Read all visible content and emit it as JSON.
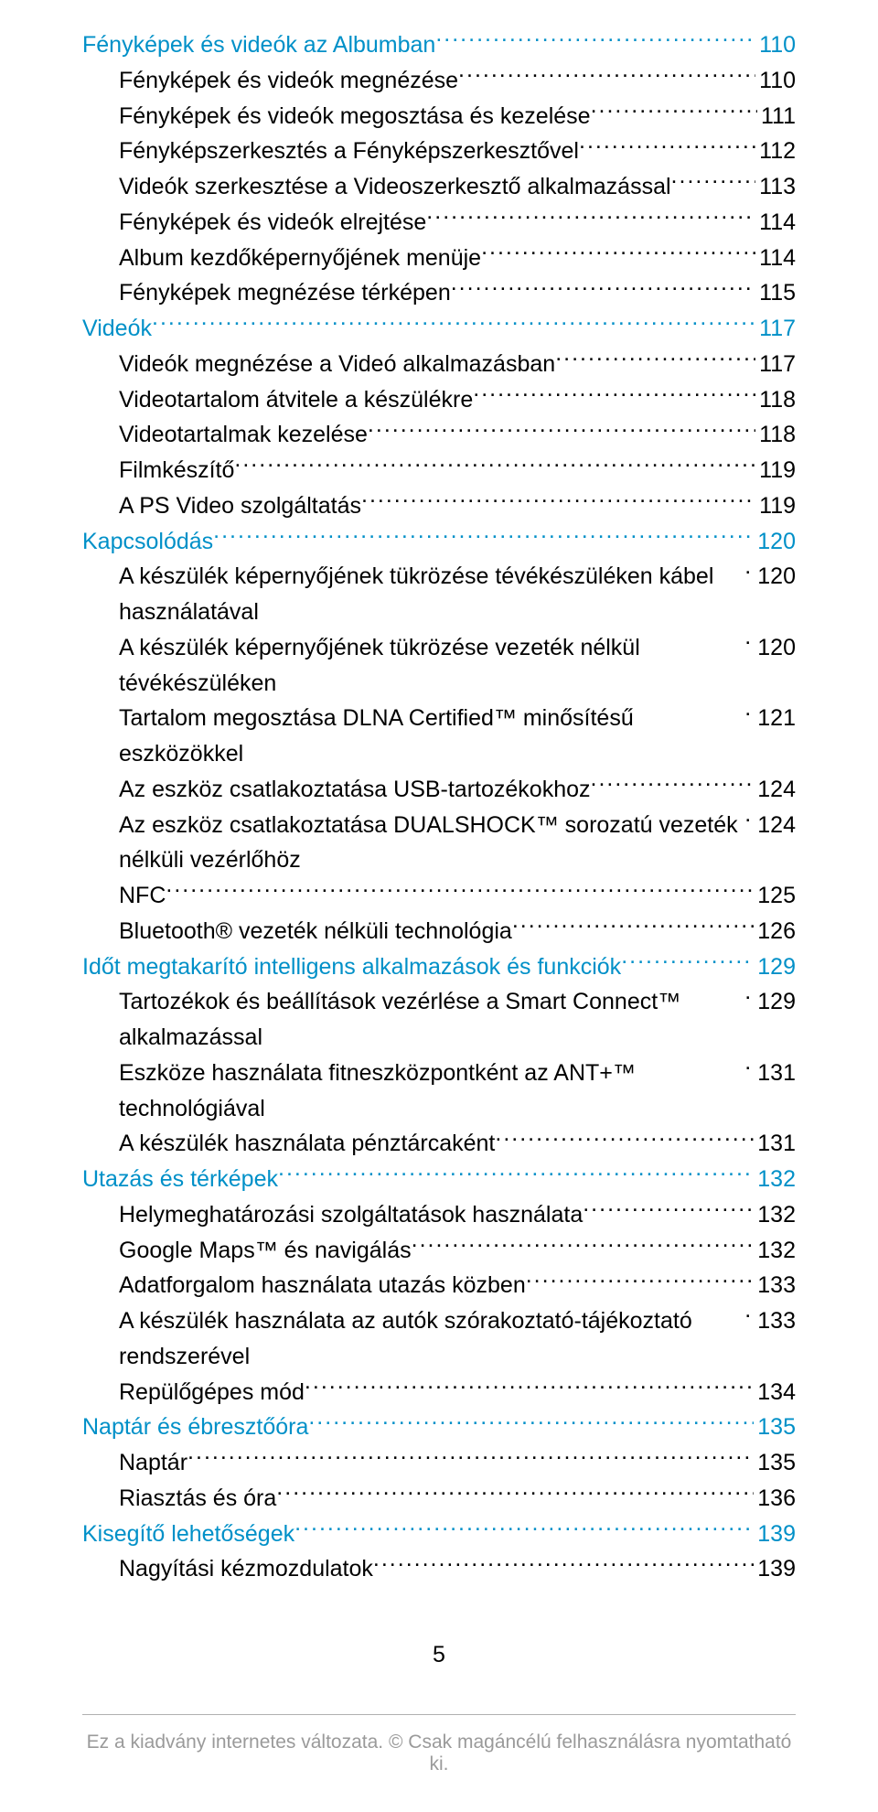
{
  "toc": [
    {
      "level": "section",
      "label": "Fényképek és videók az Albumban",
      "page": "110"
    },
    {
      "level": "sub",
      "label": "Fényképek és videók megnézése",
      "page": "110"
    },
    {
      "level": "sub",
      "label": "Fényképek és videók megosztása és kezelése",
      "page": "111"
    },
    {
      "level": "sub",
      "label": "Fényképszerkesztés a Fényképszerkesztővel",
      "page": "112"
    },
    {
      "level": "sub",
      "label": "Videók szerkesztése a Videoszerkesztő alkalmazással",
      "page": "113"
    },
    {
      "level": "sub",
      "label": "Fényképek és videók elrejtése",
      "page": "114"
    },
    {
      "level": "sub",
      "label": "Album kezdőképernyőjének menüje",
      "page": "114"
    },
    {
      "level": "sub",
      "label": "Fényképek megnézése térképen",
      "page": "115"
    },
    {
      "level": "section",
      "label": "Videók",
      "page": "117"
    },
    {
      "level": "sub",
      "label": "Videók megnézése a Videó alkalmazásban",
      "page": "117"
    },
    {
      "level": "sub",
      "label": "Videotartalom átvitele a készülékre",
      "page": "118"
    },
    {
      "level": "sub",
      "label": "Videotartalmak kezelése",
      "page": "118"
    },
    {
      "level": "sub",
      "label": "Filmkészítő",
      "page": "119"
    },
    {
      "level": "sub",
      "label": "A PS Video szolgáltatás",
      "page": "119"
    },
    {
      "level": "section",
      "label": "Kapcsolódás",
      "page": "120"
    },
    {
      "level": "sub",
      "label": "A készülék képernyőjének tükrözése tévékészüléken kábel használatával",
      "page": "120"
    },
    {
      "level": "sub",
      "label": "A készülék képernyőjének tükrözése vezeték nélkül tévékészüléken",
      "page": "120"
    },
    {
      "level": "sub",
      "label": "Tartalom megosztása DLNA Certified™ minősítésű eszközökkel",
      "page": "121"
    },
    {
      "level": "sub",
      "label": "Az eszköz csatlakoztatása USB-tartozékokhoz",
      "page": "124"
    },
    {
      "level": "sub",
      "label": "Az eszköz csatlakoztatása DUALSHOCK™ sorozatú vezeték nélküli vezérlőhöz",
      "page": "124"
    },
    {
      "level": "sub",
      "label": "NFC",
      "page": "125"
    },
    {
      "level": "sub",
      "label": "Bluetooth® vezeték nélküli technológia",
      "page": "126"
    },
    {
      "level": "section",
      "label": "Időt megtakarító intelligens alkalmazások és funkciók",
      "page": "129"
    },
    {
      "level": "sub",
      "label": "Tartozékok és beállítások vezérlése a Smart Connect™ alkalmazással",
      "page": "129"
    },
    {
      "level": "sub",
      "label": "Eszköze használata fitneszközpontként az ANT+™ technológiával",
      "page": "131"
    },
    {
      "level": "sub",
      "label": "A készülék használata pénztárcaként",
      "page": "131"
    },
    {
      "level": "section",
      "label": "Utazás és térképek",
      "page": "132"
    },
    {
      "level": "sub",
      "label": "Helymeghatározási szolgáltatások használata",
      "page": "132"
    },
    {
      "level": "sub",
      "label": "Google Maps™ és navigálás",
      "page": "132"
    },
    {
      "level": "sub",
      "label": "Adatforgalom használata utazás közben",
      "page": "133"
    },
    {
      "level": "sub",
      "label": "A készülék használata az autók szórakoztató-tájékoztató rendszerével",
      "page": "133"
    },
    {
      "level": "sub",
      "label": "Repülőgépes mód",
      "page": "134"
    },
    {
      "level": "section",
      "label": "Naptár és ébresztőóra",
      "page": "135"
    },
    {
      "level": "sub",
      "label": "Naptár",
      "page": "135"
    },
    {
      "level": "sub",
      "label": "Riasztás és óra",
      "page": "136"
    },
    {
      "level": "section",
      "label": "Kisegítő lehetőségek",
      "page": "139"
    },
    {
      "level": "sub",
      "label": "Nagyítási kézmozdulatok",
      "page": "139"
    }
  ],
  "pageNumber": "5",
  "footer": "Ez a kiadvány internetes változata. © Csak magáncélú felhasználásra nyomtatható ki.",
  "colors": {
    "section": "#0090c8",
    "sub": "#000000",
    "footer": "#9a9a9a"
  }
}
